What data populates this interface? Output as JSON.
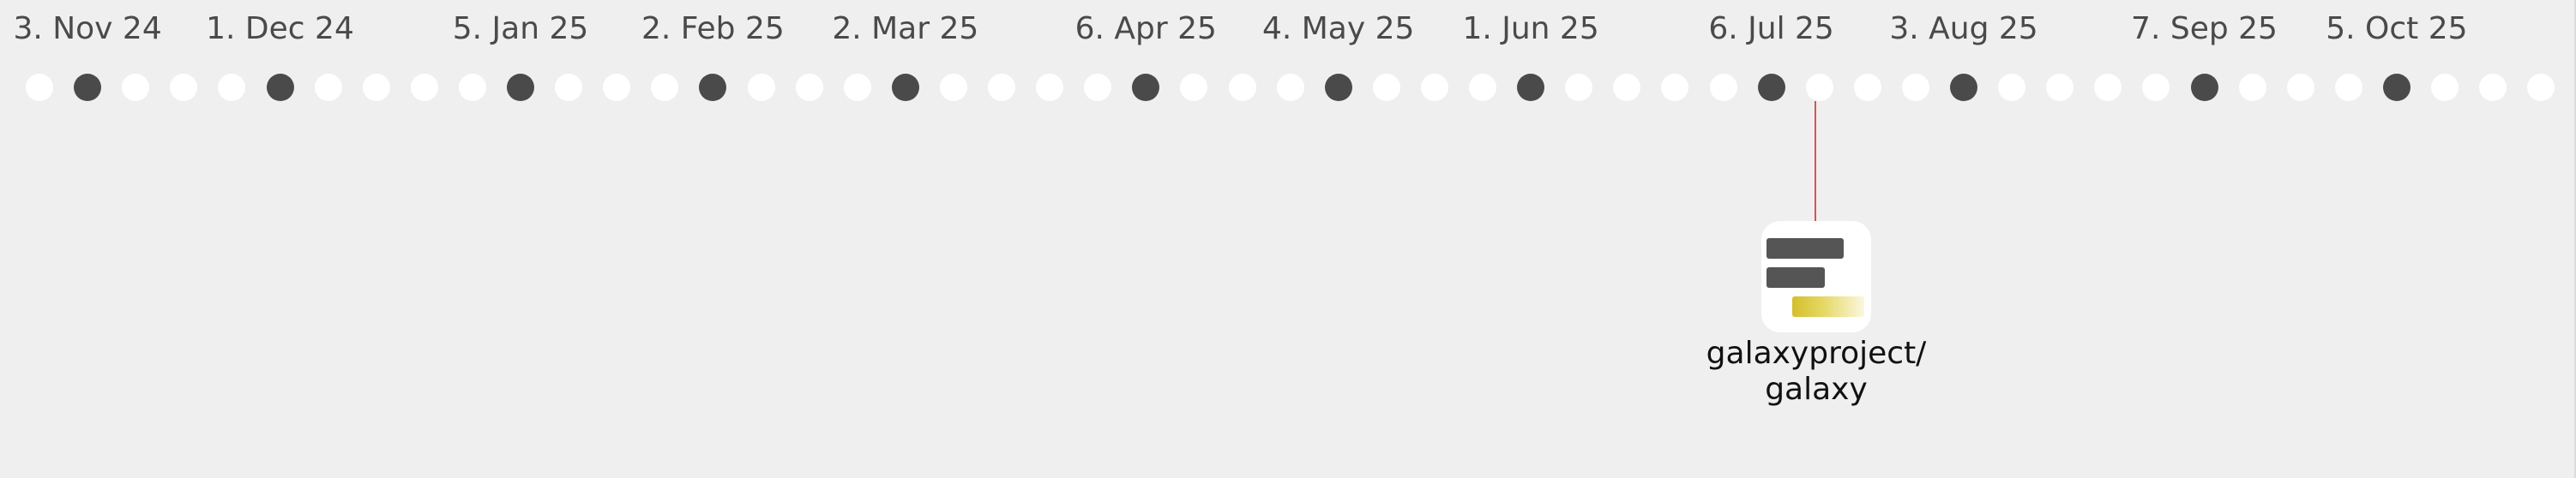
{
  "timeline": {
    "month_labels": [
      "3. Nov 24",
      "1. Dec 24",
      "5. Jan 25",
      "2. Feb 25",
      "2. Mar 25",
      "6. Apr 25",
      "4. May 25",
      "1. Jun 25",
      "6. Jul 25",
      "3. Aug 25",
      "7. Sep 25",
      "5. Oct 25"
    ],
    "week_count": 53,
    "marked_weeks": [
      1,
      5,
      10,
      14,
      18,
      23,
      27,
      31,
      36,
      40,
      45,
      49
    ],
    "selected_week": 37
  },
  "repo": {
    "name": "galaxyproject/\ngalaxy",
    "icon": "bar-chart-icon"
  },
  "colors": {
    "background": "#efefef",
    "dot_empty": "#ffffff",
    "dot_marked": "#4a4a4a",
    "connector": "#d9534f",
    "bar_dark": "#555555",
    "bar_accent": "#d4bf2a"
  }
}
